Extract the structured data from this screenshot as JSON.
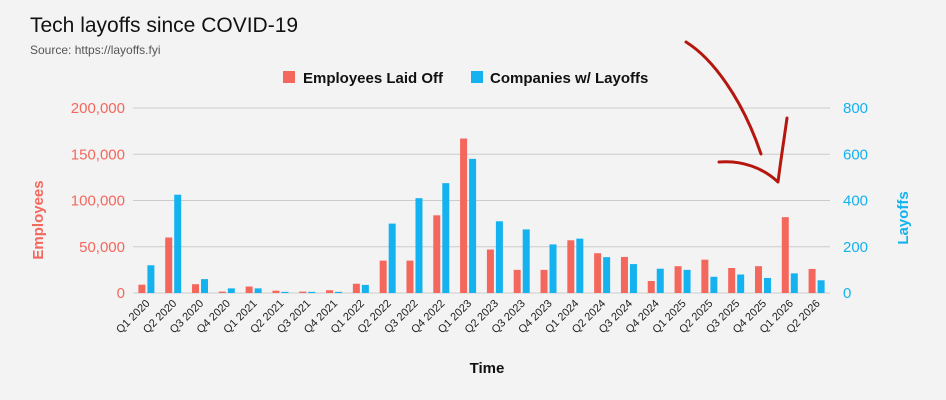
{
  "header": {
    "title": "Tech layoffs since COVID-19",
    "source": "Source: https://layoffs.fyi"
  },
  "colors": {
    "employees": "#f4675d",
    "companies": "#14b2ee",
    "grid": "#cccccc",
    "annotation": "#b5170f"
  },
  "chart_data": {
    "type": "bar",
    "title": "Tech layoffs since COVID-19",
    "xlabel": "Time",
    "ylabel": "Employees",
    "y2label": "Layoffs",
    "ylim": [
      0,
      200000
    ],
    "y2lim": [
      0,
      800
    ],
    "y_ticks": [
      "0",
      "50,000",
      "100,000",
      "150,000",
      "200,000"
    ],
    "y2_ticks": [
      "0",
      "200",
      "400",
      "600",
      "800"
    ],
    "legend_position": "top-center",
    "grid": true,
    "categories": [
      "Q1 2020",
      "Q2 2020",
      "Q3 2020",
      "Q4 2020",
      "Q1 2021",
      "Q2 2021",
      "Q3 2021",
      "Q4 2021",
      "Q1 2022",
      "Q2 2022",
      "Q3 2022",
      "Q4 2022",
      "Q1 2023",
      "Q2 2023",
      "Q3 2023",
      "Q4 2023",
      "Q1 2024",
      "Q2 2024",
      "Q3 2024",
      "Q4 2024",
      "Q1 2025",
      "Q2 2025",
      "Q3 2025",
      "Q4 2025",
      "Q1 2026",
      "Q2 2026"
    ],
    "series": [
      {
        "name": "Employees Laid Off",
        "axis": "left",
        "values": [
          9000,
          60000,
          9500,
          1500,
          7000,
          2500,
          1500,
          3000,
          10000,
          35000,
          35000,
          84000,
          167000,
          47000,
          25000,
          25000,
          57000,
          43000,
          39000,
          13000,
          29000,
          36000,
          27000,
          29000,
          82000,
          26000
        ]
      },
      {
        "name": "Companies w/ Layoffs",
        "axis": "right",
        "values": [
          120,
          425,
          60,
          20,
          20,
          5,
          5,
          5,
          35,
          300,
          410,
          475,
          580,
          310,
          275,
          210,
          235,
          155,
          125,
          105,
          100,
          70,
          80,
          65,
          85,
          55
        ]
      }
    ]
  }
}
